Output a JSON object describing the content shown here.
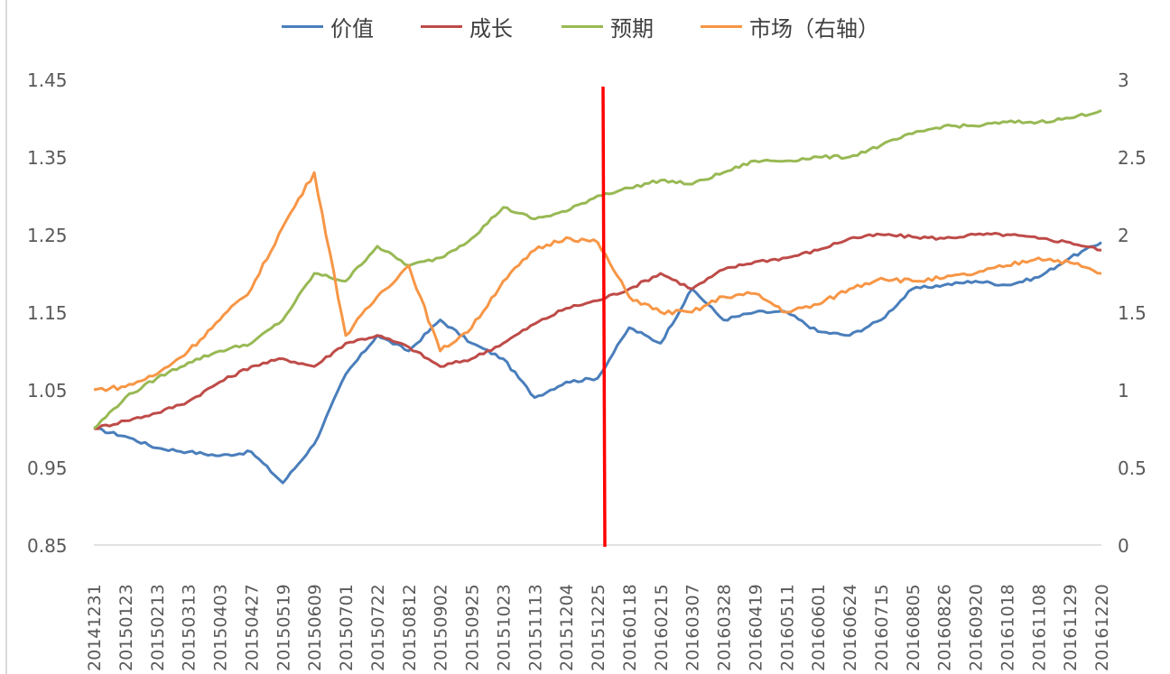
{
  "chart_data": {
    "type": "line",
    "title": "",
    "xlabel": "",
    "ylabel": "",
    "y_left": {
      "ticks": [
        "1.45",
        "1.35",
        "1.25",
        "1.15",
        "1.05",
        "0.95",
        "0.85"
      ],
      "range": [
        0.85,
        1.45
      ]
    },
    "y_right": {
      "ticks": [
        "3",
        "2.5",
        "2",
        "1.5",
        "1",
        "0.5",
        "0"
      ],
      "range": [
        0,
        3
      ]
    },
    "categories": [
      "20141231",
      "20150123",
      "20150213",
      "20150313",
      "20150403",
      "20150427",
      "20150519",
      "20150609",
      "20150701",
      "20150722",
      "20150812",
      "20150902",
      "20150925",
      "20151023",
      "20151113",
      "20151204",
      "20151225",
      "20160118",
      "20160215",
      "20160307",
      "20160328",
      "20160419",
      "20160511",
      "20160601",
      "20160624",
      "20160715",
      "20160805",
      "20160826",
      "20160920",
      "20161018",
      "20161108",
      "20161129",
      "20161220"
    ],
    "legend_position": "top",
    "grid": false,
    "reference_line": {
      "category": "20151225",
      "color": "#ff0000"
    },
    "series": [
      {
        "name": "价值",
        "axis": "left",
        "color": "#4a7ebb",
        "values": [
          1.0,
          0.99,
          0.975,
          0.97,
          0.965,
          0.97,
          0.93,
          0.98,
          1.07,
          1.12,
          1.1,
          1.14,
          1.11,
          1.09,
          1.04,
          1.06,
          1.065,
          1.13,
          1.11,
          1.18,
          1.14,
          1.15,
          1.15,
          1.125,
          1.12,
          1.14,
          1.18,
          1.185,
          1.19,
          1.185,
          1.195,
          1.22,
          1.24
        ]
      },
      {
        "name": "成长",
        "axis": "left",
        "color": "#be4b48",
        "values": [
          1.0,
          1.01,
          1.02,
          1.035,
          1.06,
          1.08,
          1.09,
          1.08,
          1.11,
          1.12,
          1.105,
          1.08,
          1.09,
          1.11,
          1.135,
          1.155,
          1.165,
          1.18,
          1.2,
          1.18,
          1.205,
          1.215,
          1.22,
          1.23,
          1.245,
          1.25,
          1.247,
          1.245,
          1.25,
          1.25,
          1.245,
          1.24,
          1.23
        ]
      },
      {
        "name": "预期",
        "axis": "left",
        "color": "#98b954",
        "values": [
          1.0,
          1.04,
          1.065,
          1.085,
          1.1,
          1.11,
          1.14,
          1.2,
          1.19,
          1.235,
          1.21,
          1.22,
          1.245,
          1.285,
          1.27,
          1.28,
          1.3,
          1.31,
          1.32,
          1.315,
          1.33,
          1.345,
          1.345,
          1.35,
          1.35,
          1.365,
          1.38,
          1.39,
          1.39,
          1.395,
          1.395,
          1.4,
          1.41
        ]
      },
      {
        "name": "市场（右轴）",
        "axis": "right",
        "color": "#f79646",
        "values": [
          1.0,
          1.02,
          1.1,
          1.25,
          1.45,
          1.65,
          2.05,
          2.4,
          1.35,
          1.6,
          1.8,
          1.25,
          1.4,
          1.7,
          1.9,
          1.98,
          1.95,
          1.6,
          1.5,
          1.5,
          1.6,
          1.62,
          1.5,
          1.55,
          1.65,
          1.72,
          1.7,
          1.72,
          1.75,
          1.8,
          1.85,
          1.82,
          1.75
        ]
      }
    ]
  }
}
